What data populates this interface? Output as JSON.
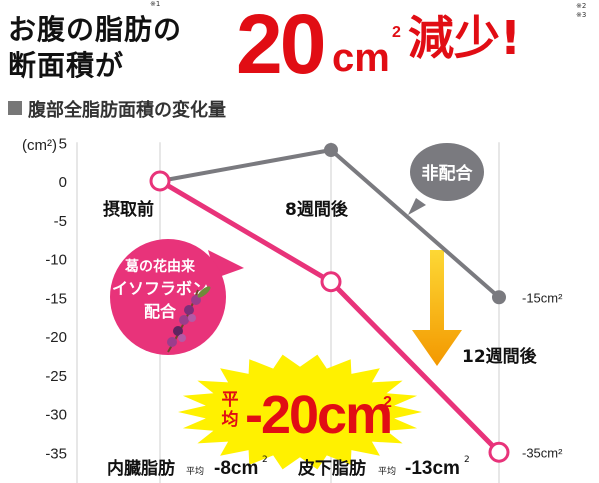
{
  "header": {
    "line1": "お腹の脂肪の",
    "line2": "断面積が",
    "big_number": "20",
    "big_unit": "cm",
    "big_unit_sup": "2",
    "big_suffix": "減少!",
    "note1": "※1",
    "note2": "※2",
    "note3": "※3"
  },
  "subtitle": "腹部全脂肪面積の変化量",
  "chart_data": {
    "type": "line",
    "categories": [
      "摂取前",
      "8週間後",
      "12週間後"
    ],
    "series": [
      {
        "name": "非配合",
        "values": [
          0,
          4,
          -15
        ],
        "color": "#7a7a7f",
        "end_label": "-15cm²"
      },
      {
        "name": "葛の花由来イソフラボン配合",
        "values": [
          0,
          -13,
          -35
        ],
        "color": "#e8337a",
        "end_label": "-35cm²"
      }
    ],
    "ylim": [
      -40,
      5
    ],
    "yticks": [
      5,
      0,
      -5,
      -10,
      -15,
      -20,
      -25,
      -30,
      -35
    ],
    "yunit": "(cm²)",
    "grid": "vertical",
    "callouts": {
      "non_mix": "非配合",
      "mix_line1": "葛の花由来",
      "mix_line2": "イソフラボン",
      "mix_line3": "配合"
    },
    "burst": {
      "prefix1": "平",
      "prefix2": "均",
      "value": "-20cm",
      "sup": "2"
    },
    "bottom": {
      "visceral": "内臓脂肪",
      "visceral_avg": "平均",
      "visceral_val": "-8cm",
      "visceral_sup": "2",
      "subcut": "皮下脂肪",
      "subcut_avg": "平均",
      "subcut_val": "-13cm",
      "subcut_sup": "2"
    }
  }
}
